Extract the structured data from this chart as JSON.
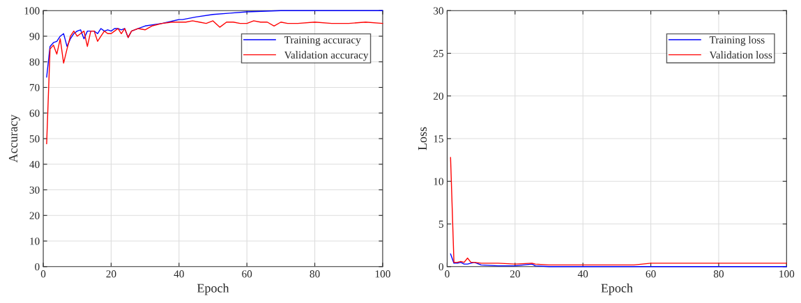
{
  "chart_data": [
    {
      "type": "line",
      "xlabel": "Epoch",
      "ylabel": "Accuracy",
      "xlim": [
        0,
        100
      ],
      "ylim": [
        0,
        100
      ],
      "xticks": [
        0,
        20,
        40,
        60,
        80,
        100
      ],
      "yticks": [
        0,
        10,
        20,
        30,
        40,
        50,
        60,
        70,
        80,
        90,
        100
      ],
      "grid": true,
      "legend": "top right",
      "series": [
        {
          "name": "Training accuracy",
          "color": "#0000ff",
          "x": [
            1,
            2,
            3,
            4,
            5,
            6,
            7,
            8,
            9,
            10,
            11,
            12,
            13,
            14,
            15,
            16,
            17,
            18,
            19,
            20,
            21,
            22,
            23,
            24,
            25,
            26,
            28,
            30,
            35,
            40,
            41,
            45,
            50,
            55,
            60,
            70,
            80,
            90,
            100
          ],
          "values": [
            74,
            86,
            87.5,
            88,
            90,
            91,
            86,
            89,
            91,
            92,
            92.5,
            89,
            92,
            92,
            92,
            91,
            93,
            92,
            92.5,
            92,
            93,
            93,
            92.5,
            93,
            89.5,
            92,
            93,
            94,
            95,
            96.5,
            96.5,
            97.5,
            98.5,
            99,
            99.5,
            100,
            100,
            100,
            100
          ]
        },
        {
          "name": "Validation accuracy",
          "color": "#ff0000",
          "x": [
            1,
            2,
            3,
            4,
            5,
            6,
            7,
            8,
            9,
            10,
            11,
            12,
            13,
            14,
            15,
            16,
            17,
            18,
            19,
            20,
            21,
            22,
            23,
            24,
            25,
            26,
            28,
            30,
            32,
            35,
            38,
            40,
            42,
            44,
            46,
            48,
            50,
            52,
            54,
            56,
            58,
            60,
            62,
            64,
            66,
            68,
            70,
            72,
            75,
            80,
            85,
            90,
            95,
            100
          ],
          "values": [
            48,
            85,
            86.5,
            83,
            89,
            79.5,
            85,
            90,
            92,
            90,
            91,
            92,
            86,
            92,
            92,
            88,
            90,
            92,
            91,
            91,
            92,
            93,
            91,
            93,
            89.5,
            92,
            93,
            92.5,
            94,
            95,
            95.5,
            95.5,
            95.5,
            96,
            95.5,
            95,
            96,
            93.5,
            95.5,
            95.5,
            95,
            95,
            96,
            95.5,
            95.5,
            94,
            95.5,
            95,
            95,
            95.5,
            95,
            95,
            95.5,
            95
          ]
        }
      ]
    },
    {
      "type": "line",
      "xlabel": "Epoch",
      "ylabel": "Loss",
      "xlim": [
        0,
        100
      ],
      "ylim": [
        0,
        30
      ],
      "xticks": [
        0,
        20,
        40,
        60,
        80,
        100
      ],
      "yticks": [
        0,
        5,
        10,
        15,
        20,
        25,
        30
      ],
      "grid": true,
      "legend": "top right",
      "series": [
        {
          "name": "Training loss",
          "color": "#0000ff",
          "x": [
            1,
            2,
            3,
            4,
            5,
            6,
            8,
            10,
            15,
            20,
            25,
            26,
            30,
            40,
            50,
            60,
            80,
            100
          ],
          "values": [
            1.5,
            0.4,
            0.4,
            0.5,
            0.3,
            0.3,
            0.5,
            0.2,
            0.1,
            0.1,
            0.3,
            0.1,
            0,
            0,
            0,
            0,
            0,
            0
          ]
        },
        {
          "name": "Validation loss",
          "color": "#ff0000",
          "x": [
            1,
            2,
            3,
            4,
            5,
            6,
            7,
            8,
            10,
            15,
            20,
            25,
            26,
            30,
            40,
            50,
            55,
            60,
            65,
            70,
            80,
            100
          ],
          "values": [
            12.8,
            0.5,
            0.5,
            0.6,
            0.5,
            1.0,
            0.5,
            0.5,
            0.4,
            0.4,
            0.3,
            0.4,
            0.3,
            0.2,
            0.2,
            0.2,
            0.2,
            0.4,
            0.4,
            0.4,
            0.4,
            0.4
          ]
        }
      ]
    }
  ]
}
